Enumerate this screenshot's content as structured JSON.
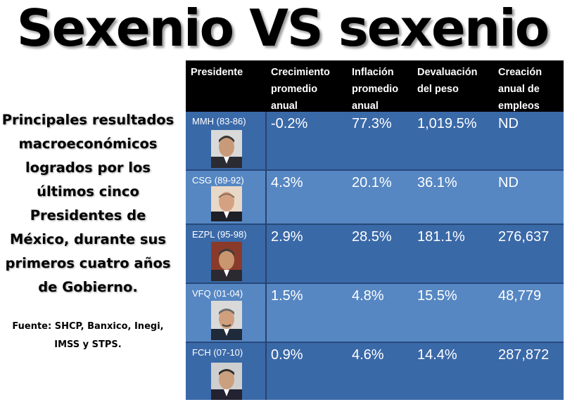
{
  "title": "Sexenio VS sexenio",
  "subtitle": [
    "Principales resultados",
    "macroeconómicos",
    "logrados por los",
    "últimos cinco",
    "Presidentes de",
    "México, durante sus",
    "primeros cuatro años",
    "de Gobierno."
  ],
  "source": [
    "Fuente:  SHCP, Banxico, Inegi,",
    "IMSS y STPS."
  ],
  "table": {
    "headers": [
      [
        "Presidente"
      ],
      [
        "Crecimiento",
        "promedio",
        "anual"
      ],
      [
        "Inflación",
        "promedio",
        "anual"
      ],
      [
        "Devaluación",
        "del peso"
      ],
      [
        "Creación",
        "anual de",
        "empleos"
      ]
    ],
    "rows": [
      {
        "president": "MMH (83-86)",
        "growth": "-0.2%",
        "inflation": "77.3%",
        "devaluation": "1,019.5%",
        "jobs": "ND"
      },
      {
        "president": "CSG (89-92)",
        "growth": "4.3%",
        "inflation": "20.1%",
        "devaluation": "36.1%",
        "jobs": "ND"
      },
      {
        "president": "EZPL (95-98)",
        "growth": "2.9%",
        "inflation": "28.5%",
        "devaluation": "181.1%",
        "jobs": "276,637"
      },
      {
        "president": "VFQ (01-04)",
        "growth": "1.5%",
        "inflation": "4.8%",
        "devaluation": "15.5%",
        "jobs": "48,779"
      },
      {
        "president": "FCH (07-10)",
        "growth": "0.9%",
        "inflation": "4.6%",
        "devaluation": "14.4%",
        "jobs": "287,872"
      }
    ]
  },
  "colors": {
    "header_bg": "#000000",
    "row_dark": "#3a69a8",
    "row_light": "#5687c3",
    "text": "#ffffff"
  }
}
